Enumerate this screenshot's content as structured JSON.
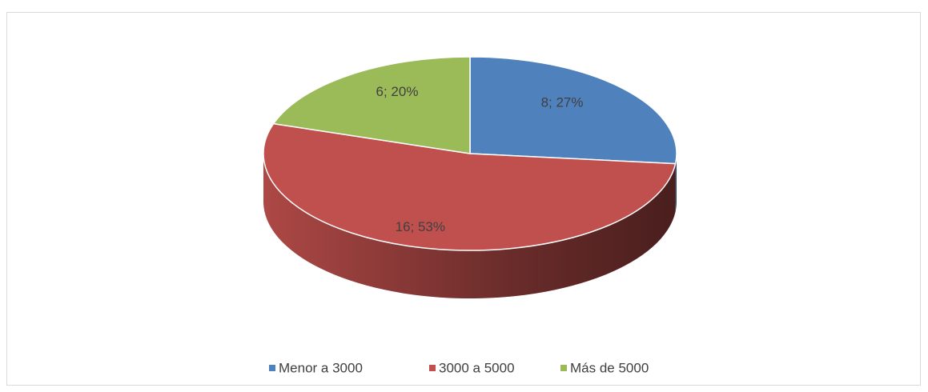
{
  "chart_data": {
    "type": "pie",
    "categories": [
      "Menor a 3000",
      "3000 a 5000",
      "Más de 5000"
    ],
    "values": [
      8,
      16,
      6
    ],
    "value_labels": [
      "8; 27%",
      "16; 53%",
      "6; 20%"
    ],
    "colors": [
      "#4f81bd",
      "#c0504d",
      "#9bbb59"
    ],
    "legend": "bottom"
  }
}
